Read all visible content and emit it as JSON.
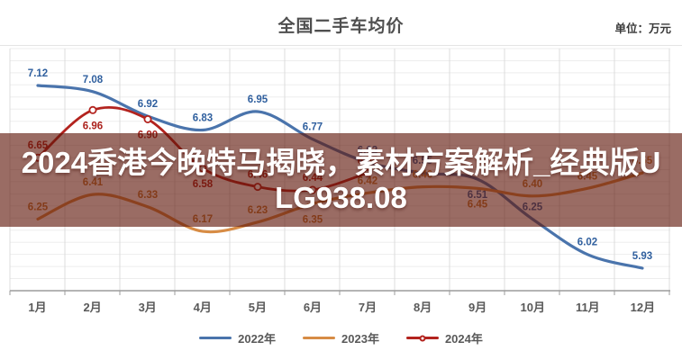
{
  "header": {
    "title": "全国二手车均价",
    "unit_label": "单位：万元"
  },
  "overlay": {
    "line1": "2024香港今晚特马揭晓，素材方案解析_经典版U",
    "line2": "LG938.08",
    "bg_color": "rgba(95,22,10,0.63)",
    "text_color": "#ffffff"
  },
  "chart_data": {
    "type": "line",
    "title": "全国二手车均价",
    "unit": "万元",
    "categories": [
      "1月",
      "2月",
      "3月",
      "4月",
      "5月",
      "6月",
      "7月",
      "8月",
      "9月",
      "10月",
      "11月",
      "12月"
    ],
    "ylim": [
      5.75,
      7.3
    ],
    "grid": true,
    "legend_position": "bottom",
    "series": [
      {
        "name": "2022年",
        "line_color": "#4a74ac",
        "label_color": "#2f5f9e",
        "marker": false,
        "values": [
          7.12,
          7.08,
          6.92,
          6.83,
          6.95,
          6.77,
          6.62,
          6.55,
          6.51,
          6.25,
          6.02,
          5.93
        ],
        "label_pos": [
          "a",
          "a",
          "a",
          "a",
          "a",
          "a",
          "a",
          "a",
          "b",
          "a",
          "a",
          "a"
        ]
      },
      {
        "name": "2023年",
        "line_color": "#d78c45",
        "label_color": "#c07a35",
        "marker": false,
        "values": [
          6.25,
          6.41,
          6.33,
          6.17,
          6.23,
          6.35,
          6.42,
          6.46,
          6.45,
          6.4,
          6.45,
          6.55
        ],
        "label_pos": [
          "a",
          "a",
          "a",
          "a",
          "a",
          "b",
          "a",
          "a",
          "b",
          "a",
          "a",
          "a"
        ]
      },
      {
        "name": "2024年",
        "line_color": "#b3231e",
        "label_color": "#ab211c",
        "marker": true,
        "values": [
          6.65,
          6.96,
          6.9,
          6.58,
          6.46,
          6.44,
          6.55
        ],
        "label_pos": [
          "a",
          "b",
          "b",
          "b",
          "a",
          "a",
          "a"
        ]
      }
    ],
    "colors": {
      "grid_h": "#ededed",
      "grid_v": "#dcdcdc",
      "axis": "#9b9b9b",
      "month_text": "#595959"
    }
  }
}
